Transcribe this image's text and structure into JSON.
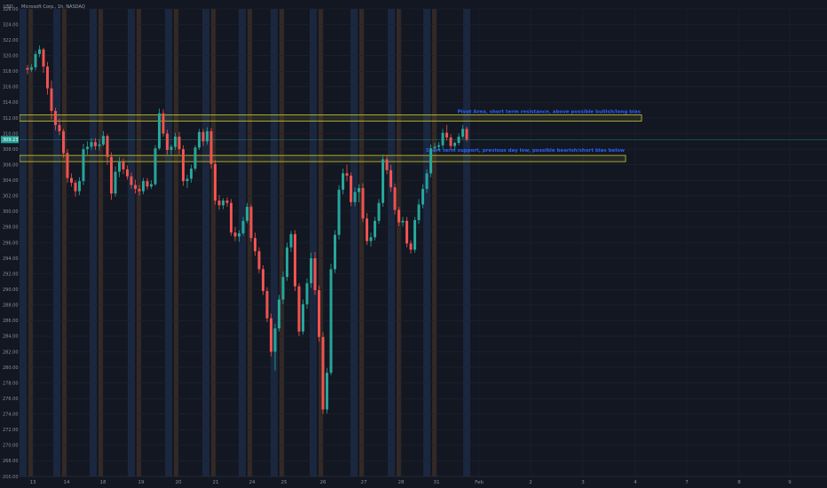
{
  "header": {
    "currency": "USD",
    "symbol": "Microsoft Corp., 1h, NASDAQ"
  },
  "chart_data": {
    "type": "candlestick",
    "title": "",
    "xlabel": "",
    "ylabel": "",
    "ylim": [
      266,
      326
    ],
    "y_ticks": [
      "326.00",
      "324.00",
      "322.00",
      "320.00",
      "318.00",
      "316.00",
      "314.00",
      "312.00",
      "310.00",
      "308.00",
      "306.00",
      "304.00",
      "302.00",
      "300.00",
      "298.00",
      "296.00",
      "294.00",
      "292.00",
      "290.00",
      "288.00",
      "286.00",
      "284.00",
      "282.00",
      "280.00",
      "278.00",
      "276.00",
      "274.00",
      "272.00",
      "270.00",
      "268.00",
      "266.00"
    ],
    "x_ticks": [
      "13",
      "14",
      "18",
      "19",
      "20",
      "21",
      "24",
      "25",
      "26",
      "27",
      "28",
      "31",
      "Feb",
      "2",
      "3",
      "4",
      "7",
      "8",
      "9"
    ],
    "last_price": "309.23",
    "grid": true,
    "colors": {
      "up": "#26a69a",
      "down": "#ef5350",
      "session_pre": "#3b2d24",
      "session_post": "#1c2a44",
      "annotation": "#2962ff",
      "zone_border": "#c9c936",
      "price_tag": "#26a69a"
    },
    "zones": [
      {
        "label": "Pivot Area, short term resistance, above possible bullish/long bias",
        "low": 311.6,
        "high": 312.4
      },
      {
        "label": "Short term support, previous day low, possible bearish/short bias below",
        "low": 306.4,
        "high": 307.2
      }
    ],
    "candles": [
      [
        318.4,
        318.8,
        317.6,
        318.2
      ],
      [
        318.2,
        318.9,
        317.9,
        318.5
      ],
      [
        318.5,
        320.6,
        318.1,
        320.2
      ],
      [
        320.2,
        321.3,
        319.8,
        320.8
      ],
      [
        320.8,
        321.0,
        317.8,
        318.6
      ],
      [
        318.6,
        319.2,
        315.0,
        315.8
      ],
      [
        315.8,
        316.8,
        311.8,
        312.9
      ],
      [
        312.9,
        313.3,
        310.4,
        311.1
      ],
      [
        311.1,
        311.9,
        309.8,
        310.3
      ],
      [
        310.3,
        310.6,
        306.9,
        307.5
      ],
      [
        307.5,
        308.0,
        303.7,
        304.3
      ],
      [
        304.3,
        304.9,
        303.2,
        303.7
      ],
      [
        303.7,
        304.0,
        301.9,
        302.6
      ],
      [
        302.6,
        304.4,
        302.1,
        303.9
      ],
      [
        303.9,
        308.7,
        303.4,
        308.0
      ],
      [
        308.0,
        309.0,
        307.3,
        308.3
      ],
      [
        308.3,
        309.4,
        307.9,
        308.9
      ],
      [
        308.9,
        309.4,
        307.9,
        308.4
      ],
      [
        308.4,
        309.2,
        307.8,
        308.6
      ],
      [
        308.6,
        310.3,
        308.4,
        309.7
      ],
      [
        309.7,
        309.9,
        306.0,
        307.0
      ],
      [
        307.0,
        307.6,
        301.5,
        302.3
      ],
      [
        302.3,
        305.8,
        301.9,
        305.1
      ],
      [
        305.1,
        307.0,
        304.4,
        306.4
      ],
      [
        306.4,
        306.8,
        304.8,
        305.4
      ],
      [
        305.4,
        305.9,
        304.1,
        304.5
      ],
      [
        304.5,
        305.0,
        302.9,
        303.4
      ],
      [
        303.4,
        304.1,
        302.3,
        302.9
      ],
      [
        302.9,
        303.4,
        302.0,
        302.6
      ],
      [
        302.6,
        304.3,
        302.2,
        303.9
      ],
      [
        303.9,
        304.3,
        302.8,
        303.2
      ],
      [
        303.2,
        304.0,
        302.9,
        303.5
      ],
      [
        303.5,
        308.5,
        303.3,
        308.1
      ],
      [
        308.1,
        313.2,
        307.9,
        312.6
      ],
      [
        312.6,
        313.1,
        309.6,
        310.0
      ],
      [
        310.0,
        310.5,
        307.3,
        307.9
      ],
      [
        307.9,
        308.6,
        307.3,
        308.3
      ],
      [
        308.3,
        310.1,
        307.9,
        309.6
      ],
      [
        309.6,
        310.2,
        307.3,
        308.0
      ],
      [
        308.0,
        308.5,
        303.3,
        303.9
      ],
      [
        303.9,
        304.7,
        303.0,
        304.2
      ],
      [
        304.2,
        306.0,
        303.7,
        305.5
      ],
      [
        305.5,
        308.5,
        305.2,
        308.2
      ],
      [
        308.2,
        310.6,
        307.9,
        310.2
      ],
      [
        310.2,
        310.6,
        308.4,
        309.0
      ],
      [
        309.0,
        310.8,
        308.6,
        310.3
      ],
      [
        310.3,
        310.7,
        305.5,
        306.1
      ],
      [
        306.1,
        306.6,
        300.9,
        301.4
      ],
      [
        301.4,
        302.1,
        300.2,
        300.8
      ],
      [
        300.8,
        301.7,
        300.3,
        301.4
      ],
      [
        301.4,
        301.8,
        300.6,
        301.1
      ],
      [
        301.1,
        301.6,
        296.9,
        297.3
      ],
      [
        297.3,
        298.0,
        296.2,
        296.8
      ],
      [
        296.8,
        297.6,
        296.1,
        297.2
      ],
      [
        297.2,
        299.3,
        296.9,
        298.8
      ],
      [
        298.8,
        301.1,
        298.5,
        300.6
      ],
      [
        300.6,
        300.9,
        296.1,
        296.6
      ],
      [
        296.6,
        297.3,
        294.3,
        294.9
      ],
      [
        294.9,
        295.4,
        292.1,
        292.6
      ],
      [
        292.6,
        293.1,
        289.3,
        289.8
      ],
      [
        289.8,
        290.3,
        285.8,
        286.3
      ],
      [
        286.3,
        286.9,
        281.4,
        282.0
      ],
      [
        282.0,
        285.6,
        279.6,
        285.0
      ],
      [
        285.0,
        289.3,
        284.6,
        288.7
      ],
      [
        288.7,
        292.3,
        288.1,
        291.6
      ],
      [
        291.6,
        296.0,
        291.1,
        295.4
      ],
      [
        295.4,
        297.5,
        294.8,
        297.1
      ],
      [
        297.1,
        297.6,
        289.8,
        290.4
      ],
      [
        290.4,
        290.8,
        284.0,
        284.6
      ],
      [
        284.6,
        288.7,
        284.2,
        288.1
      ],
      [
        288.1,
        291.4,
        287.5,
        290.8
      ],
      [
        290.8,
        294.7,
        290.2,
        294.0
      ],
      [
        294.0,
        294.8,
        289.3,
        289.9
      ],
      [
        289.9,
        290.5,
        283.3,
        283.9
      ],
      [
        283.9,
        284.5,
        274.0,
        274.6
      ],
      [
        274.6,
        279.9,
        274.1,
        279.3
      ],
      [
        279.3,
        293.3,
        279.0,
        292.6
      ],
      [
        292.6,
        297.6,
        292.1,
        297.0
      ],
      [
        297.0,
        303.4,
        296.4,
        302.8
      ],
      [
        302.8,
        305.5,
        302.2,
        304.9
      ],
      [
        304.9,
        306.0,
        303.9,
        304.6
      ],
      [
        304.6,
        305.0,
        300.7,
        301.2
      ],
      [
        301.2,
        303.1,
        300.7,
        302.5
      ],
      [
        302.5,
        303.5,
        301.2,
        303.0
      ],
      [
        303.0,
        303.6,
        298.6,
        299.1
      ],
      [
        299.1,
        299.8,
        295.7,
        296.2
      ],
      [
        296.2,
        297.3,
        295.5,
        296.7
      ],
      [
        296.7,
        299.3,
        296.3,
        298.8
      ],
      [
        298.8,
        301.6,
        298.4,
        301.1
      ],
      [
        301.1,
        307.3,
        300.6,
        306.7
      ],
      [
        306.7,
        307.2,
        304.8,
        305.3
      ],
      [
        305.3,
        306.0,
        302.5,
        303.1
      ],
      [
        303.1,
        303.6,
        299.6,
        300.2
      ],
      [
        300.2,
        300.6,
        298.1,
        298.6
      ],
      [
        298.6,
        299.3,
        298.1,
        298.8
      ],
      [
        298.8,
        299.3,
        295.4,
        295.9
      ],
      [
        295.9,
        296.3,
        294.6,
        295.1
      ],
      [
        295.1,
        299.3,
        294.7,
        298.9
      ],
      [
        298.9,
        301.6,
        298.4,
        300.9
      ],
      [
        300.9,
        303.5,
        300.4,
        302.9
      ],
      [
        302.9,
        305.4,
        302.4,
        304.9
      ],
      [
        304.9,
        308.6,
        304.4,
        308.1
      ],
      [
        308.1,
        308.8,
        307.7,
        308.3
      ],
      [
        308.3,
        308.9,
        307.8,
        308.5
      ],
      [
        308.5,
        310.6,
        308.1,
        310.1
      ],
      [
        310.1,
        311.1,
        309.1,
        309.5
      ],
      [
        309.5,
        309.9,
        308.0,
        308.4
      ],
      [
        308.4,
        309.0,
        307.9,
        308.8
      ],
      [
        308.8,
        310.0,
        308.5,
        309.6
      ],
      [
        309.6,
        311.1,
        309.3,
        310.6
      ],
      [
        310.6,
        310.9,
        309.0,
        309.2
      ]
    ]
  }
}
